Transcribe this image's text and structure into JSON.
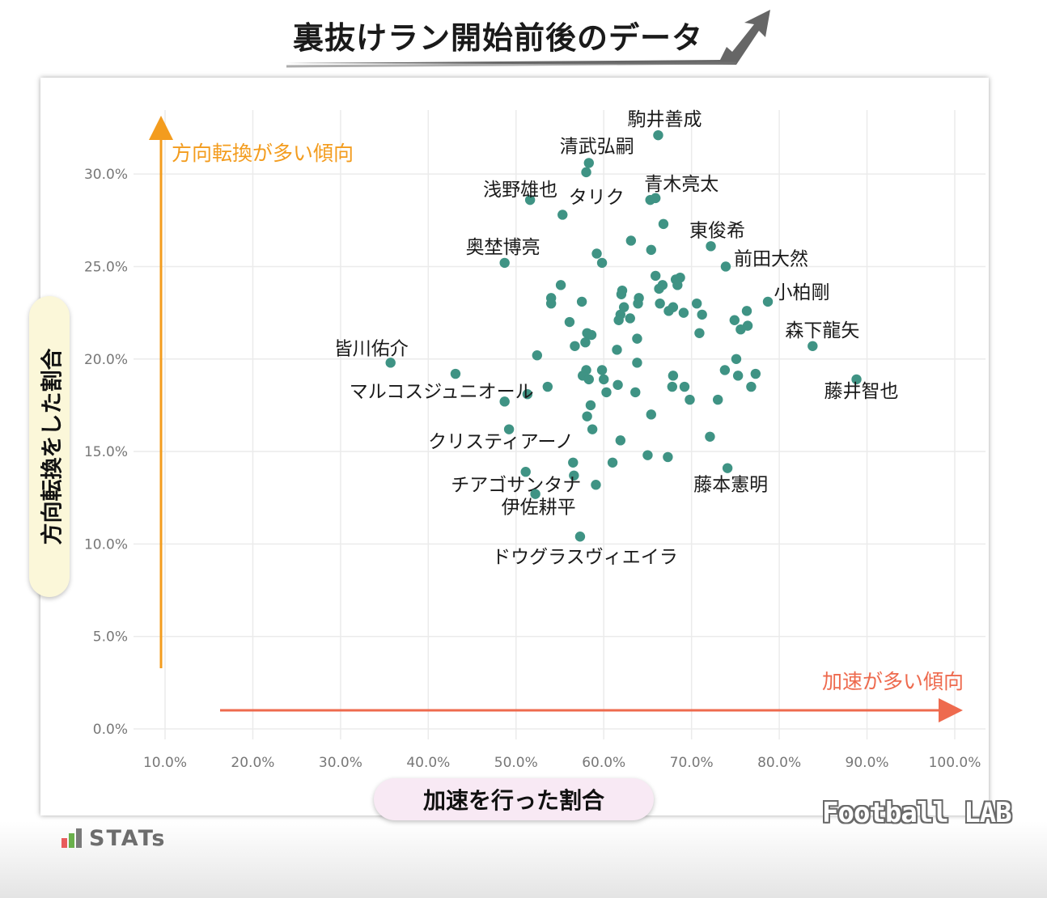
{
  "title": "裏抜けラン開始前後のデータ",
  "branding": {
    "stats_logo": "STATs",
    "football_lab": "Football LAB"
  },
  "labels": {
    "ylabel": "方向転換をした割合",
    "xlabel": "加速を行った割合",
    "y_direction": "方向転換が多い傾向",
    "x_direction": "加速が多い傾向"
  },
  "colors": {
    "point": "#3f9384",
    "y_arrow": "#f39c1e",
    "x_arrow": "#ee6a4e",
    "grid": "#ebebeb"
  },
  "chart_data": {
    "type": "scatter",
    "xlabel": "加速を行った割合",
    "ylabel": "方向転換をした割合",
    "xlim": [
      10,
      100
    ],
    "ylim": [
      0,
      32.5
    ],
    "x_ticks": [
      "10.0%",
      "20.0%",
      "30.0%",
      "40.0%",
      "50.0%",
      "60.0%",
      "70.0%",
      "80.0%",
      "90.0%",
      "100.0%"
    ],
    "y_ticks": [
      "0.0%",
      "5.0%",
      "10.0%",
      "15.0%",
      "20.0%",
      "25.0%",
      "30.0%"
    ],
    "grid": true,
    "labeled_points": [
      {
        "name": "駒井善成",
        "x": 66.2,
        "y": 32.1
      },
      {
        "name": "清武弘嗣",
        "x": 58.3,
        "y": 30.6
      },
      {
        "name": "浅野雄也",
        "x": 51.6,
        "y": 28.6
      },
      {
        "name": "タリク",
        "x": 55.3,
        "y": 27.8
      },
      {
        "name": "青木亮太",
        "x": 65.9,
        "y": 28.7
      },
      {
        "name": "東俊希",
        "x": 72.2,
        "y": 26.1
      },
      {
        "name": "奥埜博亮",
        "x": 48.7,
        "y": 25.2
      },
      {
        "name": "前田大然",
        "x": 73.9,
        "y": 25.0
      },
      {
        "name": "小柏剛",
        "x": 78.7,
        "y": 23.1
      },
      {
        "name": "森下龍矢",
        "x": 83.8,
        "y": 20.7
      },
      {
        "name": "皆川佑介",
        "x": 35.7,
        "y": 19.8
      },
      {
        "name": "藤井智也",
        "x": 88.8,
        "y": 18.9
      },
      {
        "name": "マルコスジュニオール",
        "x": 48.7,
        "y": 17.7
      },
      {
        "name": "クリスティアーノ",
        "x": 49.2,
        "y": 16.2
      },
      {
        "name": "藤本憲明",
        "x": 74.1,
        "y": 14.1
      },
      {
        "name": "チアゴサンタナ",
        "x": 51.1,
        "y": 13.9
      },
      {
        "name": "伊佐耕平",
        "x": 52.2,
        "y": 12.7
      },
      {
        "name": "ドウグラスヴィエイラ",
        "x": 57.3,
        "y": 10.4
      }
    ],
    "points": [
      [
        58.0,
        30.1
      ],
      [
        65.3,
        28.6
      ],
      [
        66.8,
        27.3
      ],
      [
        63.1,
        26.4
      ],
      [
        65.4,
        25.9
      ],
      [
        59.2,
        25.7
      ],
      [
        59.8,
        25.2
      ],
      [
        65.9,
        24.5
      ],
      [
        68.2,
        24.3
      ],
      [
        68.7,
        24.4
      ],
      [
        68.4,
        24.0
      ],
      [
        66.7,
        24.0
      ],
      [
        66.3,
        23.8
      ],
      [
        55.1,
        24.0
      ],
      [
        62.1,
        23.7
      ],
      [
        62.0,
        23.5
      ],
      [
        54.0,
        23.3
      ],
      [
        64.0,
        23.3
      ],
      [
        54.0,
        23.0
      ],
      [
        57.5,
        23.1
      ],
      [
        63.9,
        23.0
      ],
      [
        66.4,
        23.0
      ],
      [
        70.6,
        23.0
      ],
      [
        62.3,
        22.8
      ],
      [
        67.9,
        22.8
      ],
      [
        67.4,
        22.6
      ],
      [
        69.1,
        22.5
      ],
      [
        61.9,
        22.4
      ],
      [
        76.3,
        22.6
      ],
      [
        71.2,
        22.4
      ],
      [
        63.0,
        22.2
      ],
      [
        61.7,
        22.1
      ],
      [
        56.1,
        22.0
      ],
      [
        74.9,
        22.1
      ],
      [
        76.4,
        21.8
      ],
      [
        75.6,
        21.6
      ],
      [
        58.1,
        21.4
      ],
      [
        58.6,
        21.3
      ],
      [
        70.9,
        21.4
      ],
      [
        63.8,
        21.1
      ],
      [
        57.9,
        20.9
      ],
      [
        56.7,
        20.7
      ],
      [
        61.5,
        20.5
      ],
      [
        52.4,
        20.2
      ],
      [
        75.1,
        20.0
      ],
      [
        63.8,
        19.8
      ],
      [
        59.8,
        19.4
      ],
      [
        73.8,
        19.4
      ],
      [
        58.0,
        19.4
      ],
      [
        43.1,
        19.2
      ],
      [
        77.3,
        19.2
      ],
      [
        57.6,
        19.1
      ],
      [
        67.9,
        19.1
      ],
      [
        75.3,
        19.1
      ],
      [
        58.3,
        18.9
      ],
      [
        60.0,
        18.9
      ],
      [
        61.6,
        18.6
      ],
      [
        53.6,
        18.5
      ],
      [
        67.8,
        18.5
      ],
      [
        69.2,
        18.5
      ],
      [
        76.8,
        18.5
      ],
      [
        60.3,
        18.2
      ],
      [
        63.6,
        18.2
      ],
      [
        51.3,
        18.1
      ],
      [
        69.8,
        17.8
      ],
      [
        73.0,
        17.8
      ],
      [
        58.5,
        17.5
      ],
      [
        58.1,
        16.9
      ],
      [
        65.4,
        17.0
      ],
      [
        58.7,
        16.2
      ],
      [
        72.1,
        15.8
      ],
      [
        61.9,
        15.6
      ],
      [
        65.0,
        14.8
      ],
      [
        67.3,
        14.7
      ],
      [
        56.5,
        14.4
      ],
      [
        61.0,
        14.4
      ],
      [
        56.6,
        13.7
      ],
      [
        59.1,
        13.2
      ]
    ]
  }
}
